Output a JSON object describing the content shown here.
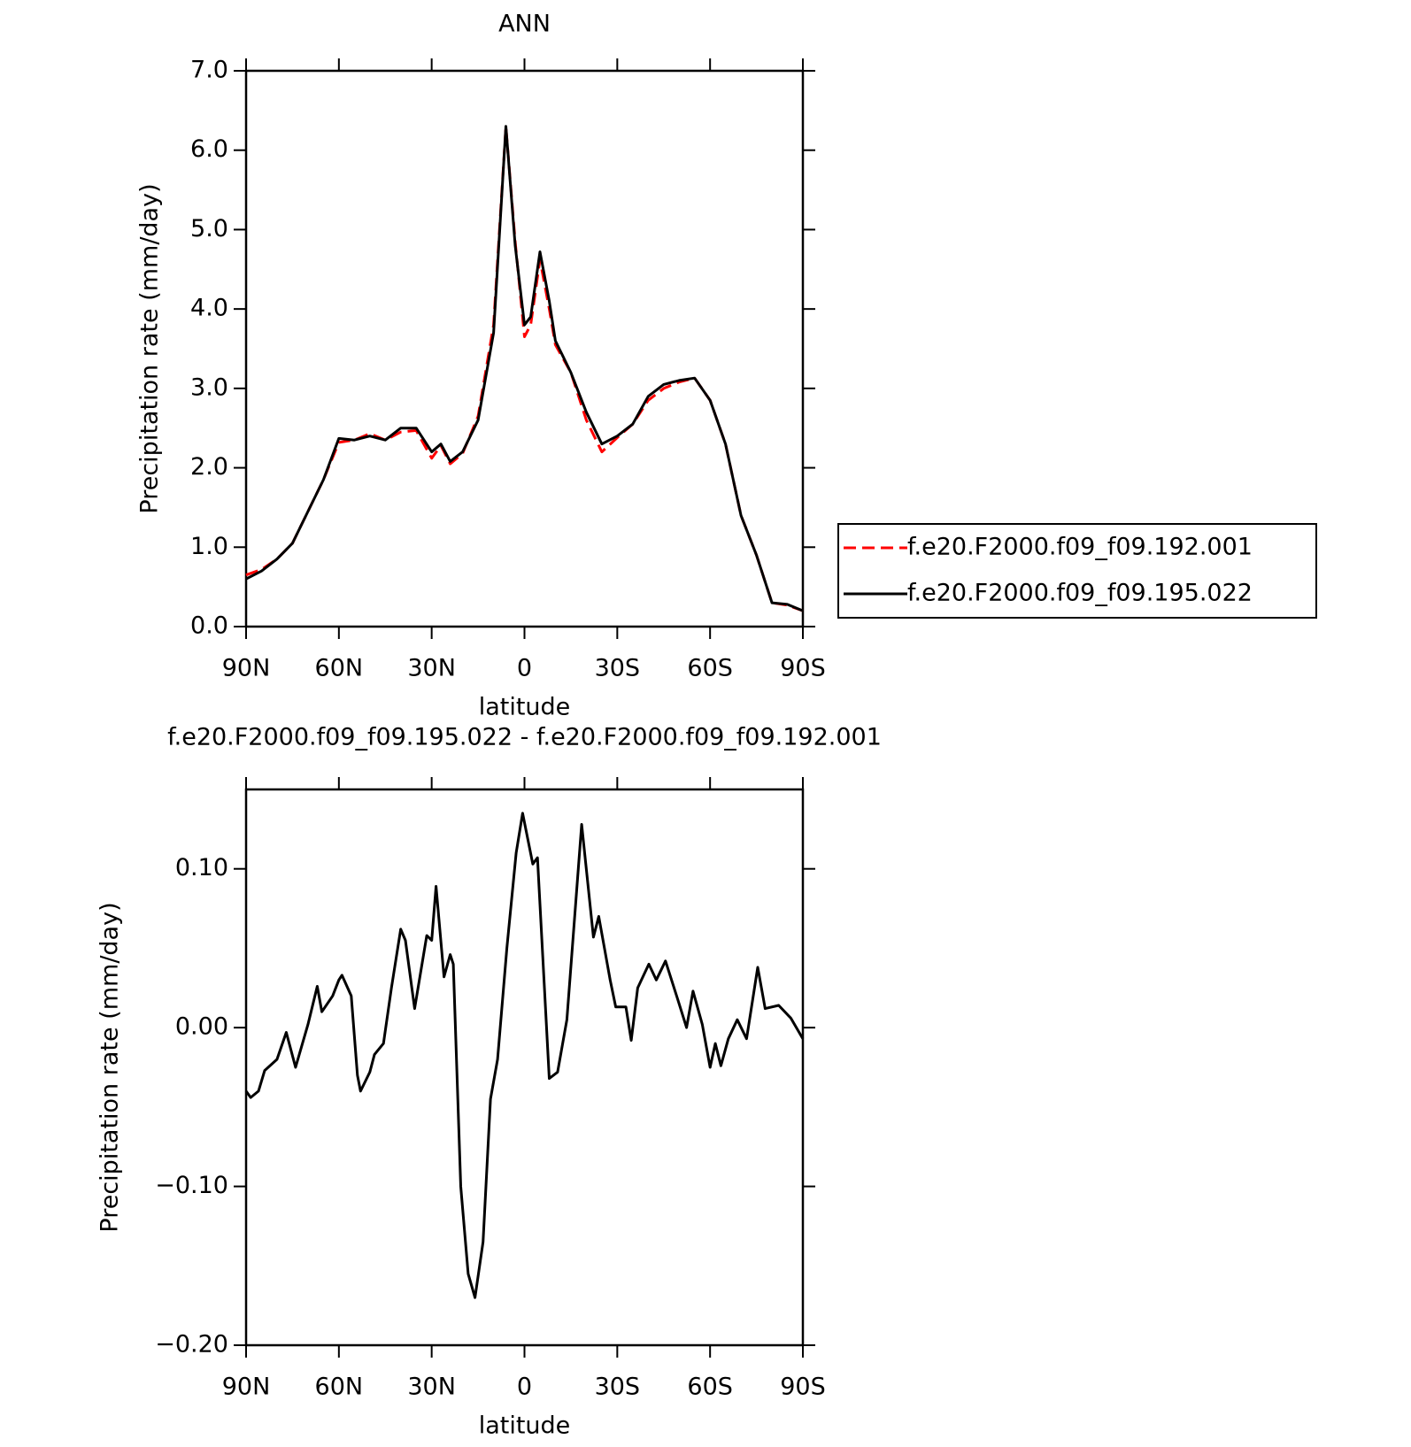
{
  "chart_data": [
    {
      "type": "line",
      "title": "ANN",
      "x_label": "latitude",
      "y_label": "Precipitation rate (mm/day)",
      "x": [
        90,
        85,
        80,
        75,
        70,
        65,
        60,
        55,
        50,
        45,
        40,
        35,
        30,
        27,
        24,
        20,
        15,
        10,
        6,
        3,
        0,
        -2,
        -5,
        -8,
        -10,
        -15,
        -20,
        -25,
        -30,
        -35,
        -40,
        -45,
        -50,
        -55,
        -60,
        -65,
        -70,
        -75,
        -80,
        -85,
        -90
      ],
      "series": [
        {
          "name": "f.e20.F2000.f09_f09.192.001",
          "color": "#ff0000",
          "line_style": "dashed",
          "values": [
            0.65,
            0.72,
            0.85,
            1.05,
            1.45,
            1.85,
            2.32,
            2.35,
            2.43,
            2.35,
            2.45,
            2.47,
            2.12,
            2.28,
            2.05,
            2.18,
            2.65,
            3.8,
            6.3,
            4.85,
            3.65,
            3.8,
            4.62,
            4.0,
            3.55,
            3.2,
            2.6,
            2.2,
            2.38,
            2.55,
            2.85,
            3.0,
            3.08,
            3.13,
            2.85,
            2.3,
            1.4,
            0.9,
            0.3,
            0.27,
            0.2
          ]
        },
        {
          "name": "f.e20.F2000.f09_f09.195.022",
          "color": "#000000",
          "line_style": "solid",
          "values": [
            0.6,
            0.7,
            0.85,
            1.05,
            1.45,
            1.85,
            2.37,
            2.35,
            2.4,
            2.35,
            2.5,
            2.5,
            2.2,
            2.3,
            2.08,
            2.2,
            2.6,
            3.7,
            6.3,
            4.8,
            3.8,
            3.9,
            4.72,
            4.1,
            3.6,
            3.2,
            2.7,
            2.3,
            2.4,
            2.55,
            2.9,
            3.05,
            3.1,
            3.13,
            2.85,
            2.3,
            1.4,
            0.9,
            0.3,
            0.28,
            0.2
          ]
        }
      ],
      "xlim": [
        90,
        -90
      ],
      "xticks": [
        {
          "value": 90,
          "label": "90N"
        },
        {
          "value": 60,
          "label": "60N"
        },
        {
          "value": 30,
          "label": "30N"
        },
        0,
        {
          "value": -30,
          "label": "30S"
        },
        {
          "value": -60,
          "label": "60S"
        },
        {
          "value": -90,
          "label": "90S"
        }
      ],
      "ylim": [
        0,
        7
      ],
      "yticks": [
        {
          "value": 0,
          "label": "0.0"
        },
        {
          "value": 1,
          "label": "1.0"
        },
        {
          "value": 2,
          "label": "2.0"
        },
        {
          "value": 3,
          "label": "3.0"
        },
        {
          "value": 4,
          "label": "4.0"
        },
        {
          "value": 5,
          "label": "5.0"
        },
        {
          "value": 6,
          "label": "6.0"
        },
        {
          "value": 7,
          "label": "7.0"
        }
      ],
      "legend": "right"
    },
    {
      "type": "line",
      "title": "f.e20.F2000.f09_f09.195.022 - f.e20.F2000.f09_f09.192.001",
      "x_label": "latitude",
      "y_label": "Precipitation rate (mm/day)",
      "x": [
        90,
        88.5,
        86,
        84,
        80,
        77,
        74,
        70,
        67,
        65.5,
        62,
        60,
        59,
        56,
        54,
        53,
        50,
        48.5,
        45.6,
        43,
        40,
        38.5,
        35.5,
        31.6,
        30,
        28.6,
        26,
        24,
        23,
        20.6,
        18.2,
        16,
        13.4,
        11,
        8.7,
        5.7,
        2.7,
        0.6,
        -2.7,
        -4.2,
        -8,
        -10.7,
        -13.7,
        -18.5,
        -22.3,
        -24,
        -27.7,
        -29.5,
        -32.8,
        -34.5,
        -36.6,
        -40.2,
        -42.6,
        -45.6,
        -49.5,
        -52.4,
        -54.5,
        -57.5,
        -60,
        -61.7,
        -63.5,
        -65.9,
        -68.8,
        -71.8,
        -75.4,
        -77.8,
        -82.2,
        -86.1,
        -90
      ],
      "color": "#000000",
      "values": [
        -0.04,
        -0.044,
        -0.04,
        -0.027,
        -0.02,
        -0.003,
        -0.025,
        0.002,
        0.026,
        0.01,
        0.02,
        0.03,
        0.033,
        0.02,
        -0.03,
        -0.04,
        -0.028,
        -0.017,
        -0.01,
        0.025,
        0.062,
        0.055,
        0.012,
        0.058,
        0.055,
        0.089,
        0.032,
        0.046,
        0.04,
        -0.1,
        -0.155,
        -0.17,
        -0.135,
        -0.045,
        -0.02,
        0.05,
        0.11,
        0.135,
        0.103,
        0.107,
        -0.032,
        -0.028,
        0.005,
        0.128,
        0.057,
        0.07,
        0.03,
        0.013,
        0.013,
        -0.008,
        0.025,
        0.04,
        0.03,
        0.042,
        0.018,
        0,
        0.023,
        0.002,
        -0.025,
        -0.01,
        -0.024,
        -0.007,
        0.005,
        -0.007,
        0.038,
        0.012,
        0.014,
        0.006,
        -0.007
      ],
      "xlim": [
        90,
        -90
      ],
      "xticks": [
        {
          "value": 90,
          "label": "90N"
        },
        {
          "value": 60,
          "label": "60N"
        },
        {
          "value": 30,
          "label": "30N"
        },
        0,
        {
          "value": -30,
          "label": "30S"
        },
        {
          "value": -60,
          "label": "60S"
        },
        {
          "value": -90,
          "label": "90S"
        }
      ],
      "ylim": [
        -0.2,
        0.15
      ],
      "yticks": [
        {
          "value": -0.2,
          "label": "−0.20"
        },
        {
          "value": -0.1,
          "label": "−0.10"
        },
        {
          "value": 0,
          "label": "0.00"
        },
        {
          "value": 0.1,
          "label": "0.10"
        }
      ]
    }
  ]
}
